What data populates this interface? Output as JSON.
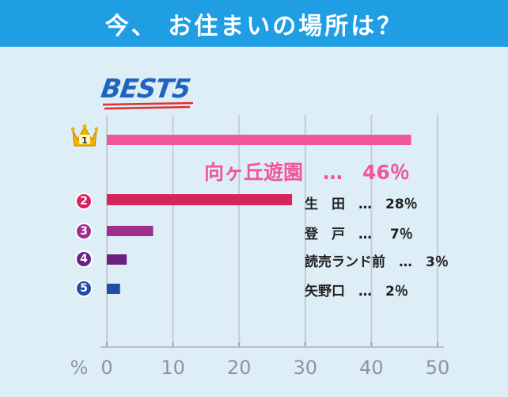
{
  "header": {
    "title": "今、 お住まいの場所は？"
  },
  "best": {
    "text": "BEST5"
  },
  "colors": {
    "header_bg": "#1f9ee3",
    "bar1": "#f0579b",
    "bar2": "#d6245f",
    "bar3": "#9c2f8c",
    "bar4": "#6a2182",
    "bar5": "#1f4fa3",
    "grid": "#c6ccd2"
  },
  "ranks": [
    {
      "rank": "1",
      "icon": "crown-icon",
      "label": "向ヶ丘遊園　…　46％"
    },
    {
      "rank": "2",
      "icon": "rank-circle-icon",
      "label": "生　田　…　28％"
    },
    {
      "rank": "3",
      "icon": "rank-circle-icon",
      "label": "登　戸　…　 7％"
    },
    {
      "rank": "4",
      "icon": "rank-circle-icon",
      "label": "読売ランド前　…　3％"
    },
    {
      "rank": "5",
      "icon": "rank-circle-icon",
      "label": "矢野口　…　2％"
    }
  ],
  "chart_data": {
    "type": "bar",
    "orientation": "horizontal",
    "categories": [
      "向ヶ丘遊園",
      "生田",
      "登戸",
      "読売ランド前",
      "矢野口"
    ],
    "values": [
      46,
      28,
      7,
      3,
      2
    ],
    "unit_label": "%",
    "xlim": [
      0,
      50
    ],
    "ticks": [
      "0",
      "10",
      "20",
      "30",
      "40",
      "50"
    ],
    "grid": true
  }
}
